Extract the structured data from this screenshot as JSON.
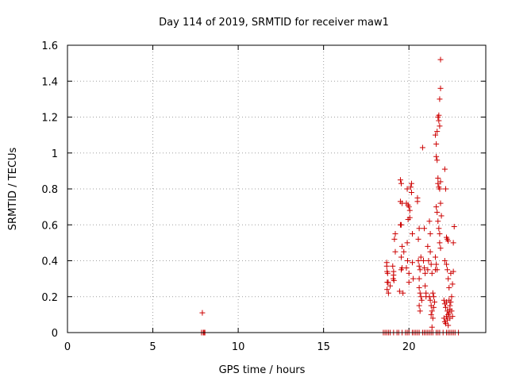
{
  "chart_data": {
    "type": "scatter",
    "title": "Day 114 of 2019, SRMTID for receiver maw1",
    "xlabel": "GPS time / hours",
    "ylabel": "SRMTID / TECUs",
    "xlim": [
      0,
      24.5
    ],
    "ylim": [
      0,
      1.6
    ],
    "grid": true,
    "marker": "plus",
    "series_color": "#cc0000",
    "xticks": [
      {
        "value": 0,
        "label": "0"
      },
      {
        "value": 5,
        "label": "5"
      },
      {
        "value": 10,
        "label": "10"
      },
      {
        "value": 15,
        "label": "15"
      },
      {
        "value": 20,
        "label": "20"
      }
    ],
    "yticks": [
      {
        "value": 0,
        "label": "0"
      },
      {
        "value": 0.2,
        "label": "0.2"
      },
      {
        "value": 0.4,
        "label": "0.4"
      },
      {
        "value": 0.6,
        "label": "0.6"
      },
      {
        "value": 0.8,
        "label": "0.8"
      },
      {
        "value": 1.0,
        "label": "1"
      },
      {
        "value": 1.2,
        "label": "1.2"
      },
      {
        "value": 1.4,
        "label": "1.4"
      },
      {
        "value": 1.6,
        "label": "1.6"
      }
    ],
    "points": [
      [
        7.9,
        0.11
      ],
      [
        7.85,
        0
      ],
      [
        7.95,
        0
      ],
      [
        8.0,
        0
      ],
      [
        8.05,
        0
      ],
      [
        18.5,
        0
      ],
      [
        18.6,
        0
      ],
      [
        18.7,
        0
      ],
      [
        18.8,
        0
      ],
      [
        18.9,
        0
      ],
      [
        19.1,
        0
      ],
      [
        19.3,
        0
      ],
      [
        19.4,
        0
      ],
      [
        19.6,
        0
      ],
      [
        19.8,
        0
      ],
      [
        19.9,
        0
      ],
      [
        20.0,
        0
      ],
      [
        20.2,
        0
      ],
      [
        20.3,
        0
      ],
      [
        20.4,
        0
      ],
      [
        20.5,
        0
      ],
      [
        20.6,
        0
      ],
      [
        20.8,
        0
      ],
      [
        20.9,
        0
      ],
      [
        21.0,
        0
      ],
      [
        21.1,
        0
      ],
      [
        21.2,
        0
      ],
      [
        21.3,
        0
      ],
      [
        21.4,
        0
      ],
      [
        21.6,
        0
      ],
      [
        21.7,
        0
      ],
      [
        21.8,
        0
      ],
      [
        22.0,
        0
      ],
      [
        22.2,
        0
      ],
      [
        22.3,
        0
      ],
      [
        22.4,
        0
      ],
      [
        22.5,
        0
      ],
      [
        22.6,
        0
      ],
      [
        22.7,
        0
      ],
      [
        22.9,
        0
      ],
      [
        18.7,
        0.39
      ],
      [
        18.7,
        0.37
      ],
      [
        18.72,
        0.34
      ],
      [
        18.75,
        0.33
      ],
      [
        18.73,
        0.28
      ],
      [
        18.78,
        0.28
      ],
      [
        18.72,
        0.24
      ],
      [
        18.8,
        0.22
      ],
      [
        18.9,
        0.26
      ],
      [
        19.05,
        0.37
      ],
      [
        19.1,
        0.34
      ],
      [
        19.1,
        0.32
      ],
      [
        19.12,
        0.29
      ],
      [
        19.08,
        0.3
      ],
      [
        19.15,
        0.52
      ],
      [
        19.2,
        0.55
      ],
      [
        19.2,
        0.45
      ],
      [
        19.5,
        0.85
      ],
      [
        19.55,
        0.83
      ],
      [
        19.5,
        0.73
      ],
      [
        19.6,
        0.72
      ],
      [
        19.5,
        0.6
      ],
      [
        19.55,
        0.6
      ],
      [
        19.6,
        0.48
      ],
      [
        19.7,
        0.45
      ],
      [
        19.55,
        0.42
      ],
      [
        19.6,
        0.36
      ],
      [
        19.55,
        0.35
      ],
      [
        19.65,
        0.22
      ],
      [
        19.45,
        0.23
      ],
      [
        19.85,
        0.72
      ],
      [
        19.9,
        0.8
      ],
      [
        19.95,
        0.71
      ],
      [
        20.0,
        0.7
      ],
      [
        20.05,
        0.68
      ],
      [
        19.95,
        0.63
      ],
      [
        20.05,
        0.64
      ],
      [
        19.9,
        0.5
      ],
      [
        19.92,
        0.4
      ],
      [
        19.85,
        0.36
      ],
      [
        20.0,
        0.33
      ],
      [
        20.0,
        0.28
      ],
      [
        20.1,
        0.81
      ],
      [
        20.15,
        0.83
      ],
      [
        20.15,
        0.78
      ],
      [
        20.2,
        0.55
      ],
      [
        20.2,
        0.39
      ],
      [
        20.25,
        0.3
      ],
      [
        20.5,
        0.75
      ],
      [
        20.5,
        0.73
      ],
      [
        20.55,
        0.52
      ],
      [
        20.6,
        0.58
      ],
      [
        20.55,
        0.4
      ],
      [
        20.6,
        0.37
      ],
      [
        20.65,
        0.35
      ],
      [
        20.6,
        0.3
      ],
      [
        20.7,
        0.42
      ],
      [
        20.6,
        0.25
      ],
      [
        20.65,
        0.22
      ],
      [
        20.7,
        0.2
      ],
      [
        20.75,
        0.18
      ],
      [
        20.6,
        0.15
      ],
      [
        20.65,
        0.12
      ],
      [
        20.8,
        1.03
      ],
      [
        20.9,
        0.58
      ],
      [
        20.85,
        0.4
      ],
      [
        20.9,
        0.36
      ],
      [
        20.95,
        0.33
      ],
      [
        20.95,
        0.26
      ],
      [
        21.0,
        0.22
      ],
      [
        21.0,
        0.2
      ],
      [
        21.1,
        0.48
      ],
      [
        21.15,
        0.4
      ],
      [
        21.1,
        0.35
      ],
      [
        21.2,
        0.62
      ],
      [
        21.25,
        0.55
      ],
      [
        21.25,
        0.45
      ],
      [
        21.3,
        0.38
      ],
      [
        21.35,
        0.33
      ],
      [
        21.2,
        0.2
      ],
      [
        21.25,
        0.18
      ],
      [
        21.3,
        0.15
      ],
      [
        21.35,
        0.12
      ],
      [
        21.3,
        0.1
      ],
      [
        21.4,
        0.08
      ],
      [
        21.35,
        0.03
      ],
      [
        21.4,
        0.22
      ],
      [
        21.45,
        0.2
      ],
      [
        21.5,
        0.17
      ],
      [
        21.45,
        0.14
      ],
      [
        21.55,
        0.35
      ],
      [
        21.55,
        1.1
      ],
      [
        21.6,
        1.05
      ],
      [
        21.65,
        1.12
      ],
      [
        21.7,
        1.2
      ],
      [
        21.75,
        1.18
      ],
      [
        21.75,
        1.21
      ],
      [
        21.8,
        1.15
      ],
      [
        21.85,
        1.36
      ],
      [
        21.8,
        1.3
      ],
      [
        21.85,
        1.52
      ],
      [
        21.6,
        0.98
      ],
      [
        21.65,
        0.96
      ],
      [
        21.7,
        0.86
      ],
      [
        21.7,
        0.83
      ],
      [
        21.75,
        0.81
      ],
      [
        21.8,
        0.8
      ],
      [
        21.85,
        0.84
      ],
      [
        21.6,
        0.7
      ],
      [
        21.65,
        0.67
      ],
      [
        21.7,
        0.62
      ],
      [
        21.75,
        0.58
      ],
      [
        21.8,
        0.55
      ],
      [
        21.8,
        0.5
      ],
      [
        21.85,
        0.47
      ],
      [
        21.55,
        0.42
      ],
      [
        21.6,
        0.38
      ],
      [
        21.65,
        0.35
      ],
      [
        21.85,
        0.72
      ],
      [
        21.9,
        0.65
      ],
      [
        22.1,
        0.91
      ],
      [
        22.15,
        0.8
      ],
      [
        22.2,
        0.53
      ],
      [
        22.25,
        0.52
      ],
      [
        22.3,
        0.51
      ],
      [
        22.1,
        0.4
      ],
      [
        22.2,
        0.38
      ],
      [
        22.25,
        0.35
      ],
      [
        22.3,
        0.3
      ],
      [
        22.05,
        0.18
      ],
      [
        22.1,
        0.16
      ],
      [
        22.15,
        0.14
      ],
      [
        22.2,
        0.17
      ],
      [
        22.25,
        0.12
      ],
      [
        22.3,
        0.1
      ],
      [
        22.35,
        0.18
      ],
      [
        22.4,
        0.15
      ],
      [
        22.05,
        0.08
      ],
      [
        22.1,
        0.06
      ],
      [
        22.15,
        0.05
      ],
      [
        22.2,
        0.09
      ],
      [
        22.25,
        0.07
      ],
      [
        22.3,
        0.04
      ],
      [
        22.35,
        0.11
      ],
      [
        22.4,
        0.13
      ],
      [
        22.45,
        0.17
      ],
      [
        22.5,
        0.12
      ],
      [
        22.55,
        0.09
      ],
      [
        22.45,
        0.33
      ],
      [
        22.55,
        0.27
      ],
      [
        22.6,
        0.34
      ],
      [
        22.65,
        0.59
      ],
      [
        22.6,
        0.5
      ],
      [
        22.5,
        0.2
      ],
      [
        22.4,
        0.08
      ],
      [
        22.35,
        0.25
      ]
    ]
  }
}
